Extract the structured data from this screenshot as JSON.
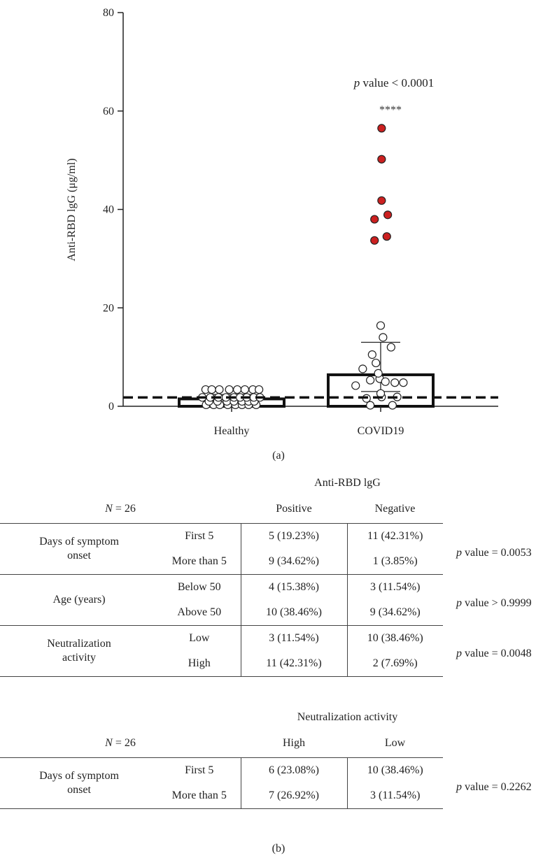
{
  "chart_data": {
    "type": "bar",
    "panel_label": "(a)",
    "ylabel": "Anti-RBD lgG (μg/ml)",
    "ylim": [
      0,
      80
    ],
    "yticks": [
      0,
      20,
      40,
      60,
      80
    ],
    "categories": [
      "Healthy",
      "COVID19"
    ],
    "bar_means": [
      1.5,
      6.4
    ],
    "error_bars": [
      [
        0.6,
        2.4
      ],
      [
        3.0,
        13.0
      ]
    ],
    "cutoff_line": 1.8,
    "significance_text": "p value < 0.0001",
    "significance_stars": "****",
    "points": [
      {
        "category": "Healthy",
        "color": "#ffffff",
        "x_offset": [
          -0.54,
          -0.38,
          -0.25,
          -0.08,
          0.08,
          0.22,
          0.36,
          0.52,
          -0.48,
          -0.3,
          -0.1,
          0.05,
          0.22,
          0.36,
          0.48,
          -0.62,
          -0.45,
          -0.28,
          -0.12,
          0.05,
          0.18,
          0.32,
          0.47,
          0.6,
          -0.55,
          -0.42,
          -0.26,
          -0.05,
          0.12,
          0.28,
          0.45,
          0.58
        ],
        "y": [
          0.3,
          0.3,
          0.3,
          0.3,
          0.3,
          0.3,
          0.3,
          0.3,
          1.0,
          1.0,
          1.0,
          1.0,
          1.0,
          1.0,
          1.0,
          1.8,
          1.8,
          1.8,
          1.8,
          1.8,
          1.8,
          1.8,
          1.8,
          1.8,
          3.4,
          3.4,
          3.4,
          3.4,
          3.4,
          3.4,
          3.4,
          3.4
        ]
      },
      {
        "category": "COVID19",
        "color": "#ffffff",
        "x_offset": [
          -0.53,
          -0.22,
          -0.02,
          0.1,
          0.3,
          0.48,
          -0.3,
          0.02,
          0.35,
          -0.22,
          0.25,
          -0.38,
          -0.05,
          -0.1,
          0.22,
          -0.18,
          0.05,
          0.0,
          0.0
        ],
        "y": [
          4.2,
          5.3,
          5.6,
          5.0,
          4.8,
          4.8,
          1.6,
          1.9,
          1.9,
          0.2,
          0.2,
          7.6,
          6.7,
          8.8,
          12.0,
          10.5,
          14.0,
          16.4,
          2.6
        ]
      },
      {
        "category": "COVID19",
        "color": "#cc2020",
        "x_offset": [
          0.02,
          0.02,
          0.02,
          -0.13,
          0.15,
          -0.13,
          0.13
        ],
        "y": [
          56.5,
          50.2,
          41.8,
          38.0,
          38.9,
          33.7,
          34.5
        ]
      }
    ]
  },
  "table1": {
    "super_header": "Anti-RBD lgG",
    "n_label": "N = 26",
    "columns": [
      "Positive",
      "Negative"
    ],
    "groups": [
      {
        "label": "Days of symptom onset",
        "rows": [
          {
            "sub": "First 5",
            "c1": "5 (19.23%)",
            "c2": "11 (42.31%)"
          },
          {
            "sub": "More than 5",
            "c1": "9 (34.62%)",
            "c2": "1 (3.85%)"
          }
        ],
        "p_label": "p",
        "p_text": " value = 0.0053"
      },
      {
        "label": "Age (years)",
        "rows": [
          {
            "sub": "Below 50",
            "c1": "4 (15.38%)",
            "c2": "3 (11.54%)"
          },
          {
            "sub": "Above 50",
            "c1": "10 (38.46%)",
            "c2": "9 (34.62%)"
          }
        ],
        "p_label": "p",
        "p_text": " value > 0.9999"
      },
      {
        "label": "Neutralization activity",
        "rows": [
          {
            "sub": "Low",
            "c1": "3 (11.54%)",
            "c2": "10 (38.46%)"
          },
          {
            "sub": "High",
            "c1": "11 (42.31%)",
            "c2": "2 (7.69%)"
          }
        ],
        "p_label": "p",
        "p_text": " value = 0.0048"
      }
    ]
  },
  "table2": {
    "super_header": "Neutralization activity",
    "n_label": "N = 26",
    "columns": [
      "High",
      "Low"
    ],
    "groups": [
      {
        "label": "Days of symptom onset",
        "rows": [
          {
            "sub": "First 5",
            "c1": "6 (23.08%)",
            "c2": "10 (38.46%)"
          },
          {
            "sub": "More than 5",
            "c1": "7 (26.92%)",
            "c2": "3 (11.54%)"
          }
        ],
        "p_label": "p",
        "p_text": " value = 0.2262"
      }
    ]
  },
  "panel_b_label": "(b)"
}
